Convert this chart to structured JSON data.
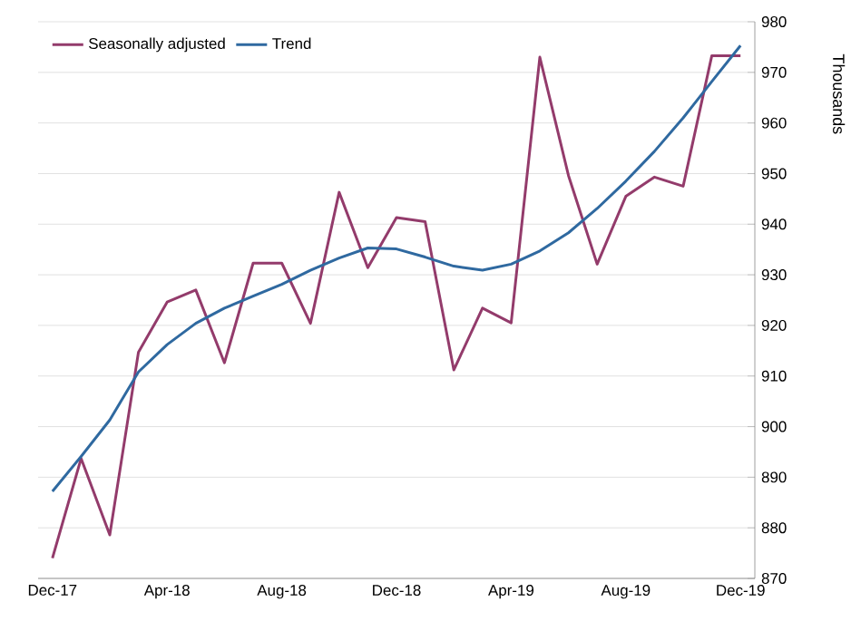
{
  "chart_data": {
    "type": "line",
    "ylabel": "Thousands",
    "categories": [
      "Dec-17",
      null,
      null,
      null,
      "Apr-18",
      null,
      null,
      null,
      "Aug-18",
      null,
      null,
      null,
      "Dec-18",
      null,
      null,
      null,
      "Apr-19",
      null,
      null,
      null,
      "Aug-19",
      null,
      null,
      null,
      "Dec-19"
    ],
    "series": [
      {
        "name": "Seasonally adjusted",
        "color": "#933b6b",
        "values": [
          874,
          893.7,
          878.6,
          914.7,
          924.6,
          927,
          912.6,
          932.3,
          932.3,
          920.4,
          946.3,
          931.4,
          941.3,
          940.5,
          911.2,
          923.4,
          920.5,
          973,
          949.6,
          932.1,
          945.5,
          949.3,
          947.5,
          973.3,
          973.3
        ]
      },
      {
        "name": "Trend",
        "color": "#2f69a0",
        "values": [
          887.2,
          894.1,
          901.3,
          910.8,
          916.2,
          920.4,
          923.4,
          925.8,
          928.1,
          930.9,
          933.3,
          935.3,
          935.1,
          933.5,
          931.7,
          930.9,
          932.1,
          934.7,
          938.3,
          943.1,
          948.5,
          954.4,
          961,
          968.2,
          975.3
        ]
      }
    ],
    "ylim": [
      870,
      980
    ],
    "yticks": [
      870,
      880,
      890,
      900,
      910,
      920,
      930,
      940,
      950,
      960,
      970,
      980
    ],
    "grid": "y",
    "legend": "top left",
    "marker": "none",
    "line_style": "solid"
  }
}
